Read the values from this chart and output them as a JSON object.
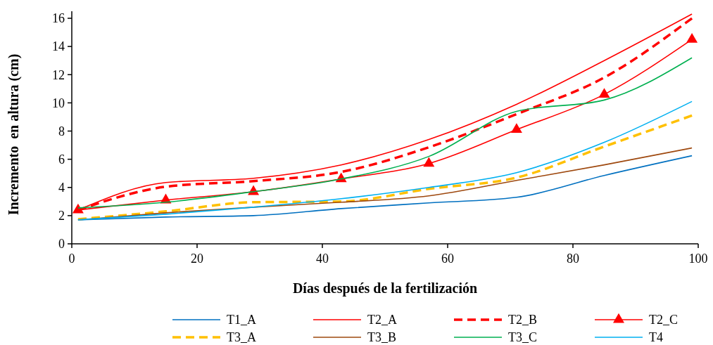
{
  "chart_data": {
    "type": "line",
    "xlabel": "Días después de la fertilización",
    "ylabel": "Incremento  en altura (cm)",
    "x": [
      1,
      15,
      29,
      43,
      57,
      71,
      85,
      99
    ],
    "xlim": [
      0,
      100
    ],
    "xticks": [
      0,
      20,
      40,
      60,
      80,
      100
    ],
    "ylim": [
      0,
      16.5
    ],
    "yticks": [
      0,
      2,
      4,
      6,
      8,
      10,
      12,
      14,
      16
    ],
    "grid": false,
    "legend": "bottom",
    "series": [
      {
        "name": "T1_A",
        "color": "#0070c0",
        "line_style": "solid",
        "marker": "none",
        "values": [
          1.7,
          1.9,
          2.0,
          2.5,
          2.9,
          3.3,
          4.85,
          6.25
        ]
      },
      {
        "name": "T2_A",
        "color": "#ff0000",
        "line_style": "solid",
        "marker": "none",
        "values": [
          2.4,
          4.35,
          4.65,
          5.6,
          7.4,
          9.9,
          13.0,
          16.3
        ]
      },
      {
        "name": "T2_B",
        "color": "#ff0000",
        "line_style": "dashed",
        "marker": "none",
        "values": [
          2.4,
          4.05,
          4.45,
          5.1,
          6.85,
          9.2,
          11.8,
          16.0
        ]
      },
      {
        "name": "T2_C",
        "color": "#ff0000",
        "line_style": "solid",
        "marker": "triangle",
        "values": [
          2.4,
          3.1,
          3.7,
          4.6,
          5.7,
          8.1,
          10.6,
          14.5
        ]
      },
      {
        "name": "T3_A",
        "color": "#ffc000",
        "line_style": "dashed",
        "marker": "none",
        "values": [
          1.75,
          2.3,
          2.95,
          3.0,
          3.9,
          4.7,
          6.9,
          9.1
        ]
      },
      {
        "name": "T3_B",
        "color": "#9e480e",
        "line_style": "solid",
        "marker": "none",
        "values": [
          1.7,
          2.2,
          2.6,
          2.95,
          3.4,
          4.5,
          5.6,
          6.8
        ]
      },
      {
        "name": "T3_C",
        "color": "#00b050",
        "line_style": "solid",
        "marker": "none",
        "values": [
          2.55,
          2.95,
          3.7,
          4.6,
          6.2,
          9.4,
          10.2,
          13.2
        ]
      },
      {
        "name": "T4",
        "color": "#00b0f0",
        "line_style": "solid",
        "marker": "none",
        "values": [
          1.7,
          2.1,
          2.6,
          3.2,
          4.0,
          5.05,
          7.2,
          10.1
        ]
      }
    ]
  }
}
